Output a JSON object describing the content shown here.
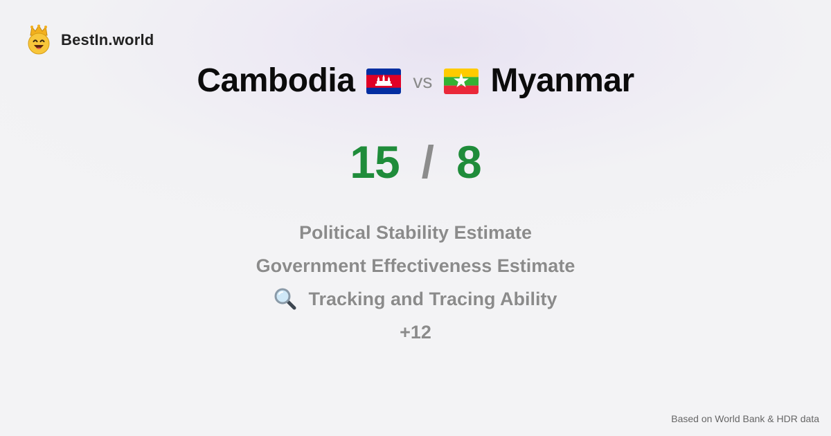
{
  "brand": {
    "name": "BestIn.world",
    "logo_icon": "crowned-smiley-icon"
  },
  "comparison": {
    "left_country": "Cambodia",
    "left_flag": "cambodia-flag-icon",
    "vs_label": "vs",
    "right_country": "Myanmar",
    "right_flag": "myanmar-flag-icon"
  },
  "scores": {
    "left": "15",
    "separator": "/",
    "right": "8",
    "color": "#1f8c3a"
  },
  "metrics": [
    {
      "label": "Political Stability Estimate",
      "icon": ""
    },
    {
      "label": "Government Effectiveness Estimate",
      "icon": ""
    },
    {
      "label": "Tracking and Tracing Ability",
      "icon": "magnifying-glass-icon"
    }
  ],
  "more_count": "+12",
  "footer": {
    "source": "Based on World Bank & HDR data"
  },
  "colors": {
    "score_green": "#1f8c3a",
    "muted_gray": "#8b8b8b",
    "title_black": "#0b0b0b"
  }
}
